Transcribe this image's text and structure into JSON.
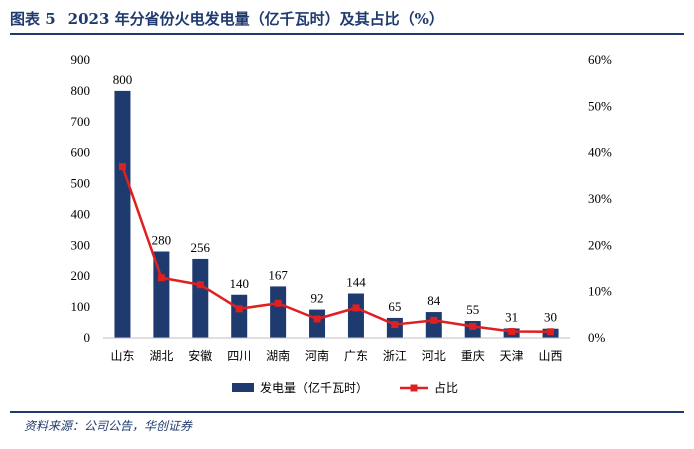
{
  "figure": {
    "number": "图表 5",
    "title": "2023 年分省份火电发电量（亿千瓦时）及其占比（%）",
    "source": "资料来源：公司公告，华创证券"
  },
  "colors": {
    "bar": "#1f3a6e",
    "line": "#e02020",
    "rule": "#1f3a6e"
  },
  "chart_data": {
    "type": "bar",
    "categories": [
      "山东",
      "湖北",
      "安徽",
      "四川",
      "湖南",
      "河南",
      "广东",
      "浙江",
      "河北",
      "重庆",
      "天津",
      "山西"
    ],
    "series": [
      {
        "name": "发电量（亿千瓦时）",
        "type": "bar",
        "axis": "left",
        "values": [
          800,
          280,
          256,
          140,
          167,
          92,
          144,
          65,
          84,
          55,
          31,
          30
        ],
        "data_labels": [
          "800",
          "280",
          "256",
          "140",
          "167",
          "92",
          "144",
          "65",
          "84",
          "55",
          "31",
          "30"
        ]
      },
      {
        "name": "占比",
        "type": "line",
        "axis": "right",
        "marker": "square",
        "values": [
          37,
          13,
          11.5,
          6.3,
          7.5,
          4.1,
          6.5,
          2.9,
          3.8,
          2.5,
          1.4,
          1.35
        ]
      }
    ],
    "ylim": [
      0,
      900
    ],
    "y_ticks": [
      "0",
      "100",
      "200",
      "300",
      "400",
      "500",
      "600",
      "700",
      "800",
      "900"
    ],
    "y2lim": [
      0,
      60
    ],
    "y2_ticks": [
      "0%",
      "10%",
      "20%",
      "30%",
      "40%",
      "50%",
      "60%"
    ],
    "grid": false,
    "legend_position": "bottom"
  }
}
